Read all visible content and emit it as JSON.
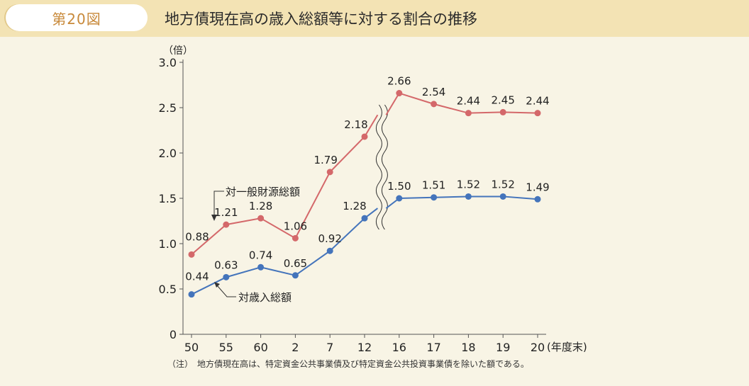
{
  "header": {
    "figure_number": "第20図",
    "title": "地方債現在高の歳入総額等に対する割合の推移"
  },
  "note": "（注）　地方債現在高は、特定資金公共事業債及び特定資金公共投資事業債を除いた額である。",
  "colors": {
    "red_series": "#d4686a",
    "blue_series": "#4474bb",
    "axis": "#555555"
  },
  "chart_data": {
    "type": "line",
    "y_unit_label": "（倍）",
    "x_unit_label": "(年度末)",
    "categories": [
      "50",
      "55",
      "60",
      "2",
      "7",
      "12",
      "16",
      "17",
      "18",
      "19",
      "20"
    ],
    "ylim": [
      0,
      3.0
    ],
    "yticks": [
      "0",
      "0.5",
      "1.0",
      "1.5",
      "2.0",
      "2.5",
      "3.0"
    ],
    "axis_break_between": [
      "12",
      "16"
    ],
    "series": [
      {
        "name": "対一般財源総額",
        "values": [
          0.88,
          1.21,
          1.28,
          1.06,
          1.79,
          2.18,
          2.66,
          2.54,
          2.44,
          2.45,
          2.44
        ],
        "labels": [
          "0.88",
          "1.21",
          "1.28",
          "1.06",
          "1.79",
          "2.18",
          "2.66",
          "2.54",
          "2.44",
          "2.45",
          "2.44"
        ]
      },
      {
        "name": "対歳入総額",
        "values": [
          0.44,
          0.63,
          0.74,
          0.65,
          0.92,
          1.28,
          1.5,
          1.51,
          1.52,
          1.52,
          1.49
        ],
        "labels": [
          "0.44",
          "0.63",
          "0.74",
          "0.65",
          "0.92",
          "1.28",
          "1.50",
          "1.51",
          "1.52",
          "1.52",
          "1.49"
        ]
      }
    ]
  }
}
